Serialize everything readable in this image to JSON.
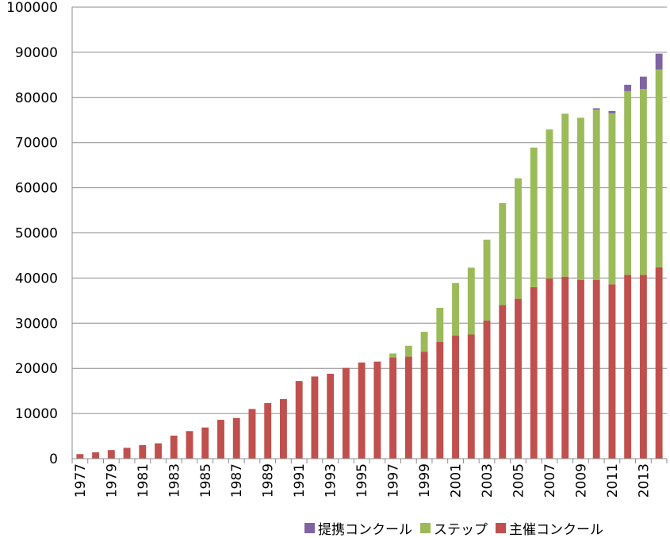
{
  "chart_data": {
    "type": "bar",
    "stacked": true,
    "title": "",
    "xlabel": "",
    "ylabel": "",
    "ylim": [
      0,
      100000
    ],
    "yticks": [
      "0",
      "10000",
      "20000",
      "30000",
      "40000",
      "50000",
      "60000",
      "70000",
      "80000",
      "90000",
      "100000"
    ],
    "grid": true,
    "legend_position": "bottom",
    "categories": [
      "1977",
      "1978",
      "1979",
      "1980",
      "1981",
      "1982",
      "1983",
      "1984",
      "1985",
      "1986",
      "1987",
      "1988",
      "1989",
      "1990",
      "1991",
      "1992",
      "1993",
      "1994",
      "1995",
      "1996",
      "1997",
      "1998",
      "1999",
      "2000",
      "2001",
      "2002",
      "2003",
      "2004",
      "2005",
      "2006",
      "2007",
      "2008",
      "2009",
      "2010",
      "2011",
      "2012",
      "2013",
      "2014"
    ],
    "category_label_every": 2,
    "series": [
      {
        "name": "主催コンクール",
        "color": "#C0504D",
        "values": [
          1000,
          1400,
          1900,
          2400,
          3000,
          3400,
          5100,
          6100,
          6900,
          8600,
          9000,
          11000,
          12300,
          13200,
          17200,
          18200,
          18800,
          20100,
          21300,
          21500,
          22400,
          22600,
          23700,
          25900,
          27300,
          27500,
          30600,
          34000,
          35400,
          38000,
          39900,
          40300,
          39600,
          39600,
          38600,
          40700,
          40700,
          42400
        ]
      },
      {
        "name": "ステップ",
        "color": "#9BBB59",
        "values": [
          0,
          0,
          0,
          0,
          0,
          0,
          0,
          0,
          0,
          0,
          0,
          0,
          0,
          0,
          0,
          0,
          0,
          0,
          0,
          0,
          900,
          2400,
          4400,
          7500,
          11600,
          14800,
          17900,
          22600,
          26700,
          30900,
          33000,
          36100,
          35900,
          37700,
          37900,
          40700,
          41200,
          43800
        ]
      },
      {
        "name": "提携コンクール",
        "color": "#8064A2",
        "values": [
          0,
          0,
          0,
          0,
          0,
          0,
          0,
          0,
          0,
          0,
          0,
          0,
          0,
          0,
          0,
          0,
          0,
          0,
          0,
          0,
          0,
          0,
          0,
          0,
          0,
          0,
          0,
          0,
          0,
          0,
          0,
          0,
          0,
          300,
          500,
          1400,
          2700,
          3500
        ]
      }
    ]
  },
  "legend": {
    "order": [
      2,
      1,
      0
    ]
  }
}
